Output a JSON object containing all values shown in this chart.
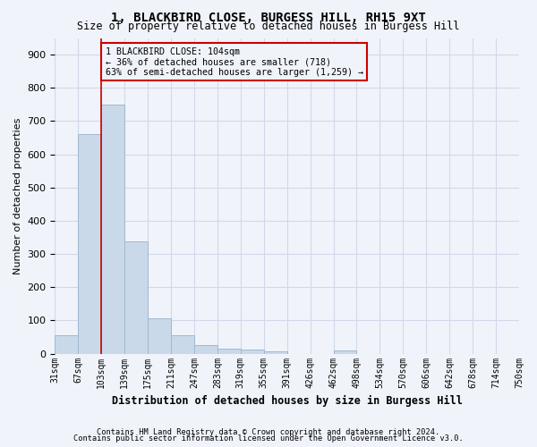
{
  "title": "1, BLACKBIRD CLOSE, BURGESS HILL, RH15 9XT",
  "subtitle": "Size of property relative to detached houses in Burgess Hill",
  "xlabel": "Distribution of detached houses by size in Burgess Hill",
  "ylabel": "Number of detached properties",
  "footnote1": "Contains HM Land Registry data © Crown copyright and database right 2024.",
  "footnote2": "Contains public sector information licensed under the Open Government Licence v3.0.",
  "bin_labels": [
    "31sqm",
    "67sqm",
    "103sqm",
    "139sqm",
    "175sqm",
    "211sqm",
    "247sqm",
    "283sqm",
    "319sqm",
    "355sqm",
    "391sqm",
    "426sqm",
    "462sqm",
    "498sqm",
    "534sqm",
    "570sqm",
    "606sqm",
    "642sqm",
    "678sqm",
    "714sqm",
    "750sqm"
  ],
  "bar_values": [
    55,
    660,
    750,
    338,
    107,
    54,
    25,
    14,
    13,
    8,
    0,
    0,
    9,
    0,
    0,
    0,
    0,
    0,
    0,
    0
  ],
  "bar_color": "#c9d9ea",
  "bar_edge_color": "#a0b8d0",
  "grid_color": "#d0d8e8",
  "property_line_x": 2,
  "property_line_color": "#cc0000",
  "annotation_text": "1 BLACKBIRD CLOSE: 104sqm\n← 36% of detached houses are smaller (718)\n63% of semi-detached houses are larger (1,259) →",
  "annotation_box_color": "#cc0000",
  "ylim": [
    0,
    950
  ],
  "yticks": [
    0,
    100,
    200,
    300,
    400,
    500,
    600,
    700,
    800,
    900
  ],
  "background_color": "#f0f4fa"
}
